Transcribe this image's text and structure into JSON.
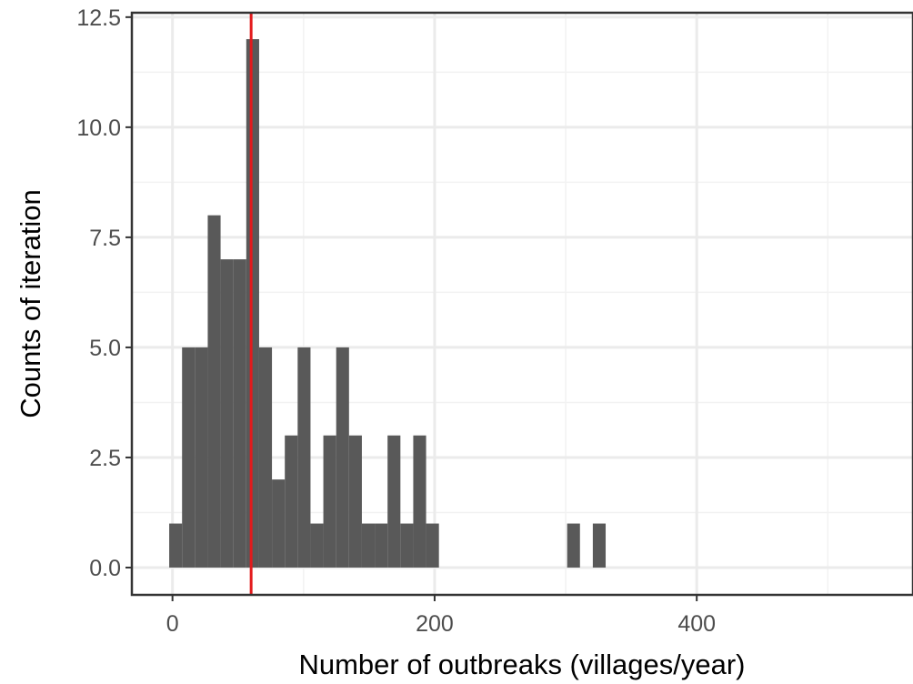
{
  "chart_data": {
    "type": "bar",
    "subtype": "histogram",
    "xlabel": "Number of outbreaks (villages/year)",
    "ylabel": "Counts of iteration",
    "xlim": [
      -31,
      565
    ],
    "ylim": [
      -0.62,
      12.6
    ],
    "x_ticks": [
      0,
      200,
      400
    ],
    "x_tick_labels": [
      "0",
      "200",
      "400"
    ],
    "y_ticks": [
      0,
      2.5,
      5,
      7.5,
      10,
      12.5
    ],
    "y_tick_labels": [
      "0.0",
      "2.5",
      "5.0",
      "7.5",
      "10.0",
      "12.5"
    ],
    "bin_width": 9.8,
    "bins": [
      {
        "x0": -2.5,
        "x1": 7.3,
        "count": 1
      },
      {
        "x0": 7.3,
        "x1": 17.1,
        "count": 5
      },
      {
        "x0": 17.1,
        "x1": 26.9,
        "count": 5
      },
      {
        "x0": 26.9,
        "x1": 36.7,
        "count": 8
      },
      {
        "x0": 36.7,
        "x1": 46.5,
        "count": 7
      },
      {
        "x0": 46.5,
        "x1": 56.3,
        "count": 7
      },
      {
        "x0": 56.3,
        "x1": 66.1,
        "count": 12
      },
      {
        "x0": 66.1,
        "x1": 75.9,
        "count": 5
      },
      {
        "x0": 75.9,
        "x1": 85.7,
        "count": 2
      },
      {
        "x0": 85.7,
        "x1": 95.5,
        "count": 3
      },
      {
        "x0": 95.5,
        "x1": 105.3,
        "count": 5
      },
      {
        "x0": 105.3,
        "x1": 115.1,
        "count": 1
      },
      {
        "x0": 115.1,
        "x1": 124.9,
        "count": 3
      },
      {
        "x0": 124.9,
        "x1": 134.7,
        "count": 5
      },
      {
        "x0": 134.7,
        "x1": 144.5,
        "count": 3
      },
      {
        "x0": 144.5,
        "x1": 154.3,
        "count": 1
      },
      {
        "x0": 154.3,
        "x1": 164.1,
        "count": 1
      },
      {
        "x0": 164.1,
        "x1": 173.9,
        "count": 3
      },
      {
        "x0": 173.9,
        "x1": 183.7,
        "count": 1
      },
      {
        "x0": 183.7,
        "x1": 193.5,
        "count": 3
      },
      {
        "x0": 193.5,
        "x1": 203.3,
        "count": 1
      },
      {
        "x0": 301.1,
        "x1": 310.9,
        "count": 1
      },
      {
        "x0": 320.7,
        "x1": 330.5,
        "count": 1
      }
    ],
    "reference_line": {
      "orientation": "vertical",
      "x": 60,
      "color": "#e31a1c"
    },
    "bar_color": "#595959",
    "grid": true,
    "legend": "none"
  }
}
